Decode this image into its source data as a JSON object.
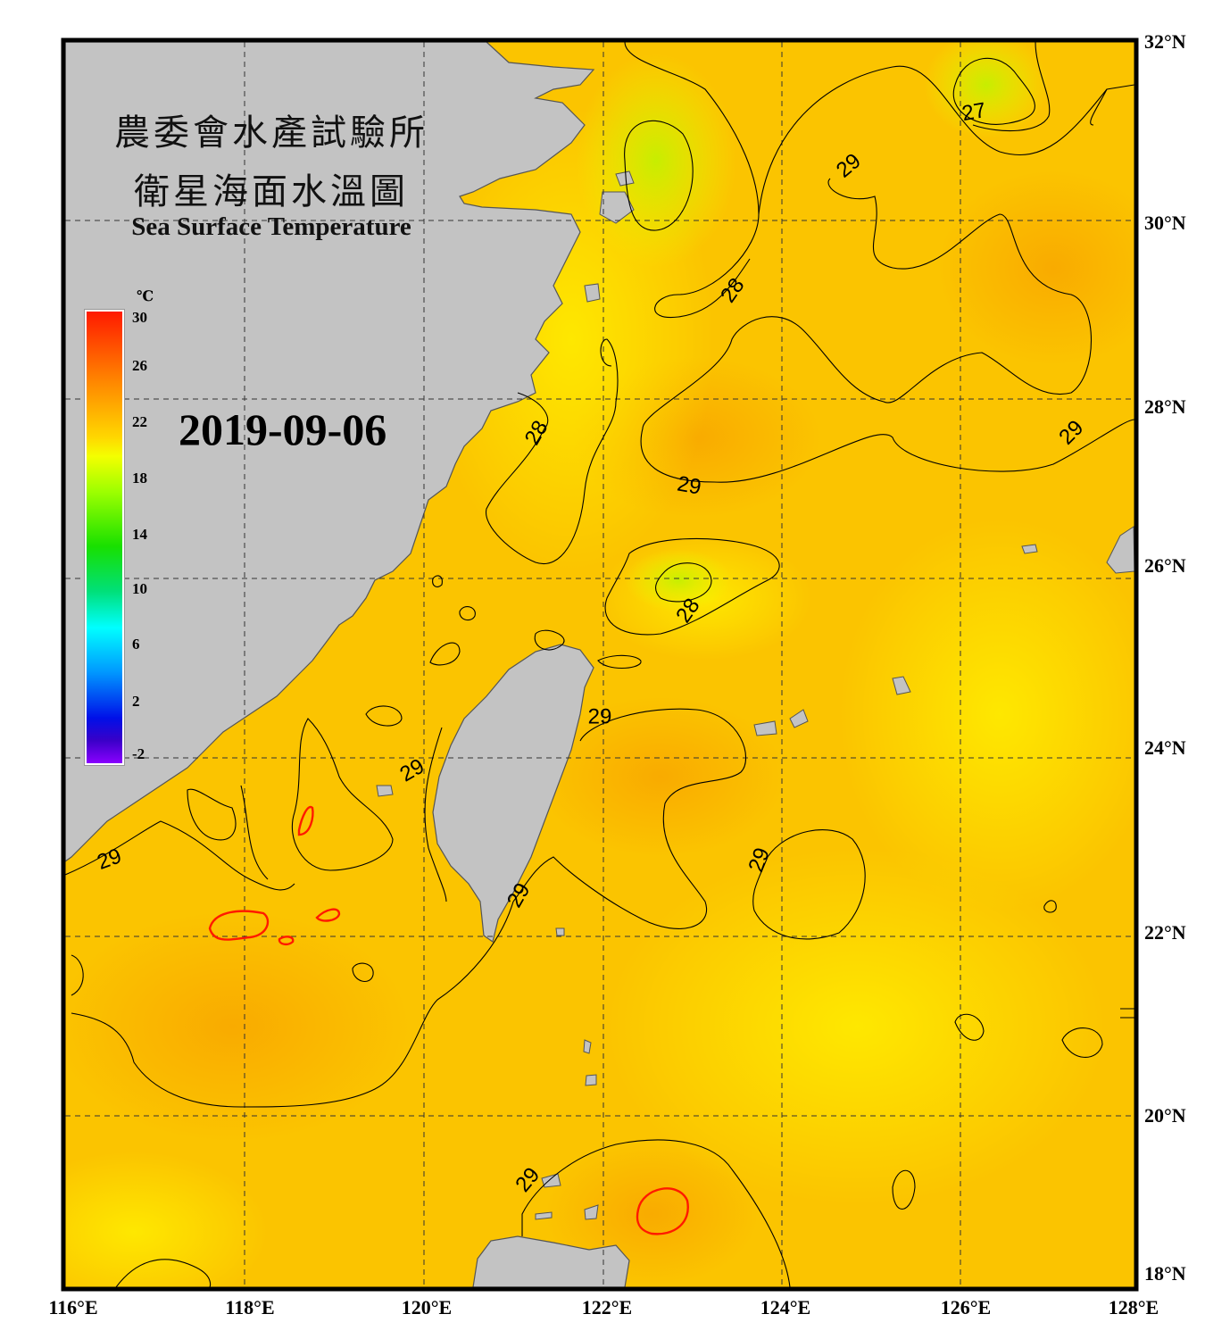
{
  "title": {
    "line1": "農委會水產試驗所",
    "line2": "衛星海面水溫圖",
    "english": "Sea Surface Temperature"
  },
  "date": "2019-09-06",
  "colorbar": {
    "unit": "℃",
    "ticks": [
      "30",
      "26",
      "22",
      "18",
      "14",
      "10",
      "6",
      "2",
      "-2"
    ],
    "range": [
      -2,
      30
    ],
    "colors": [
      "#8a00ff",
      "#0010e8",
      "#00ffff",
      "#18e000",
      "#f4ff00",
      "#ff8a00",
      "#ff1a00"
    ]
  },
  "axes": {
    "lon_labels": [
      "116°E",
      "118°E",
      "120°E",
      "122°E",
      "124°E",
      "126°E",
      "128°E"
    ],
    "lat_labels": [
      "32°N",
      "30°N",
      "28°N",
      "26°N",
      "24°N",
      "22°N",
      "20°N",
      "18°N"
    ],
    "lon_range": [
      116,
      128
    ],
    "lat_range": [
      18,
      32
    ],
    "grid": "dashed"
  },
  "contour_labels": [
    {
      "text": "27",
      "lon": 126.2,
      "lat": 31.2,
      "angle": -10
    },
    {
      "text": "29",
      "lon": 124.8,
      "lat": 30.6,
      "angle": -40
    },
    {
      "text": "28",
      "lon": 123.5,
      "lat": 29.2,
      "angle": -55
    },
    {
      "text": "28",
      "lon": 121.3,
      "lat": 27.6,
      "angle": -60
    },
    {
      "text": "29",
      "lon": 123.0,
      "lat": 27.0,
      "angle": 10
    },
    {
      "text": "29",
      "lon": 127.3,
      "lat": 27.6,
      "angle": -45
    },
    {
      "text": "28",
      "lon": 123.0,
      "lat": 25.6,
      "angle": -55
    },
    {
      "text": "29",
      "lon": 122.0,
      "lat": 24.4,
      "angle": 0
    },
    {
      "text": "29",
      "lon": 119.9,
      "lat": 23.8,
      "angle": -30
    },
    {
      "text": "29",
      "lon": 116.5,
      "lat": 22.8,
      "angle": -20
    },
    {
      "text": "29",
      "lon": 121.1,
      "lat": 22.4,
      "angle": -60
    },
    {
      "text": "29",
      "lon": 123.8,
      "lat": 22.8,
      "angle": -70
    },
    {
      "text": "29",
      "lon": 121.2,
      "lat": 19.2,
      "angle": -50
    }
  ]
}
